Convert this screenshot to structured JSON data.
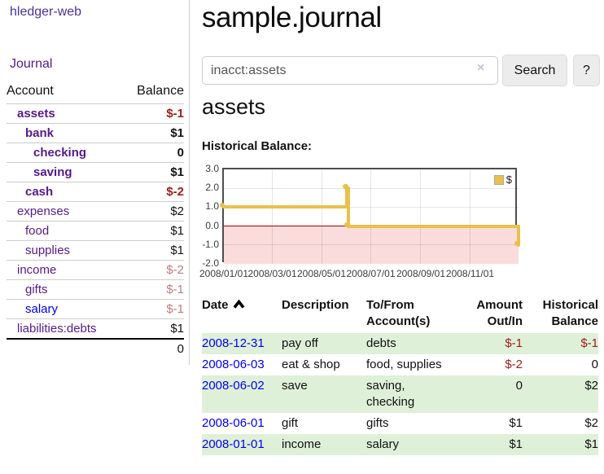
{
  "sidebar": {
    "app_title": "hledger-web",
    "journal_link": "Journal",
    "accounts": {
      "account_header": "Account",
      "balance_header": "Balance",
      "rows": [
        {
          "name": "assets",
          "balance": "$-1",
          "indent": 1,
          "bold": true,
          "name_style": "purple",
          "balance_style": "negative"
        },
        {
          "name": "bank",
          "balance": "$1",
          "indent": 2,
          "bold": true,
          "name_style": "purple",
          "balance_style": "normal"
        },
        {
          "name": "checking",
          "balance": "0",
          "indent": 3,
          "bold": true,
          "name_style": "purple",
          "balance_style": "normal"
        },
        {
          "name": "saving",
          "balance": "$1",
          "indent": 3,
          "bold": true,
          "name_style": "purple",
          "balance_style": "normal"
        },
        {
          "name": "cash",
          "balance": "$-2",
          "indent": 2,
          "bold": true,
          "name_style": "purple",
          "balance_style": "negative"
        },
        {
          "name": "expenses",
          "balance": "$2",
          "indent": 1,
          "bold": false,
          "name_style": "purple",
          "balance_style": "normal"
        },
        {
          "name": "food",
          "balance": "$1",
          "indent": 2,
          "bold": false,
          "name_style": "purple",
          "balance_style": "normal"
        },
        {
          "name": "supplies",
          "balance": "$1",
          "indent": 2,
          "bold": false,
          "name_style": "purple",
          "balance_style": "normal"
        },
        {
          "name": "income",
          "balance": "$-2",
          "indent": 1,
          "bold": false,
          "name_style": "purple",
          "balance_style": "negative-muted"
        },
        {
          "name": "gifts",
          "balance": "$-1",
          "indent": 2,
          "bold": false,
          "name_style": "purple",
          "balance_style": "negative-muted"
        },
        {
          "name": "salary",
          "balance": "$-1",
          "indent": 2,
          "bold": false,
          "name_style": "blue",
          "balance_style": "negative-muted"
        },
        {
          "name": "liabilities:debts",
          "balance": "$1",
          "indent": 1,
          "bold": false,
          "name_style": "purple",
          "balance_style": "normal"
        }
      ],
      "total": "0"
    }
  },
  "main": {
    "title": "sample.journal",
    "search": {
      "value": "inacct:assets",
      "clear_icon": "×",
      "button_label": "Search",
      "help_label": "?"
    },
    "account_heading": "assets",
    "chart_label": "Historical Balance:"
  },
  "chart_data": {
    "type": "line",
    "step": true,
    "title": "Historical Balance",
    "series": [
      {
        "name": "$",
        "color": "#e9c04a",
        "points": [
          {
            "date": "2008-01-01",
            "value": 1
          },
          {
            "date": "2008-06-01",
            "value": 2
          },
          {
            "date": "2008-06-02",
            "value": 2
          },
          {
            "date": "2008-06-03",
            "value": 0
          },
          {
            "date": "2008-12-31",
            "value": -1
          }
        ]
      }
    ],
    "xrange": [
      "2008-01-01",
      "2008-12-31"
    ],
    "ylim": [
      -2,
      3
    ],
    "yticks": [
      "3.0",
      "2.0",
      "1.0",
      "0.0",
      "-1.0",
      "-2.0"
    ],
    "xticks": [
      {
        "label": "2008/01/01",
        "date": "2008-01-01"
      },
      {
        "label": "2008/03/01",
        "date": "2008-03-01"
      },
      {
        "label": "2008/05/01",
        "date": "2008-05-01"
      },
      {
        "label": "2008/07/01",
        "date": "2008-07-01"
      },
      {
        "label": "2008/09/01",
        "date": "2008-09-01"
      },
      {
        "label": "2008/11/01",
        "date": "2008-11-01"
      }
    ],
    "legend": {
      "label": "$",
      "position": "top-right"
    },
    "grid": true,
    "zero_line_color": "#a00000",
    "below_zero_fill": "#fbdcdc"
  },
  "register": {
    "headers": {
      "date": "Date",
      "description": "Description",
      "accounts": "To/From Account(s)",
      "amount": "Amount Out/In",
      "balance": "Historical Balance"
    },
    "sort": "ascending",
    "rows": [
      {
        "date": "2008-12-31",
        "description": "pay off",
        "accounts": "debts",
        "amount": "$-1",
        "balance": "$-1",
        "amount_style": "negative",
        "balance_style": "negative"
      },
      {
        "date": "2008-06-03",
        "description": "eat & shop",
        "accounts": "food, supplies",
        "amount": "$-2",
        "balance": "0",
        "amount_style": "negative",
        "balance_style": "normal"
      },
      {
        "date": "2008-06-02",
        "description": "save",
        "accounts": "saving, checking",
        "amount": "0",
        "balance": "$2",
        "amount_style": "normal",
        "balance_style": "normal"
      },
      {
        "date": "2008-06-01",
        "description": "gift",
        "accounts": "gifts",
        "amount": "$1",
        "balance": "$2",
        "amount_style": "normal",
        "balance_style": "normal"
      },
      {
        "date": "2008-01-01",
        "description": "income",
        "accounts": "salary",
        "amount": "$1",
        "balance": "$1",
        "amount_style": "normal",
        "balance_style": "normal"
      }
    ]
  }
}
